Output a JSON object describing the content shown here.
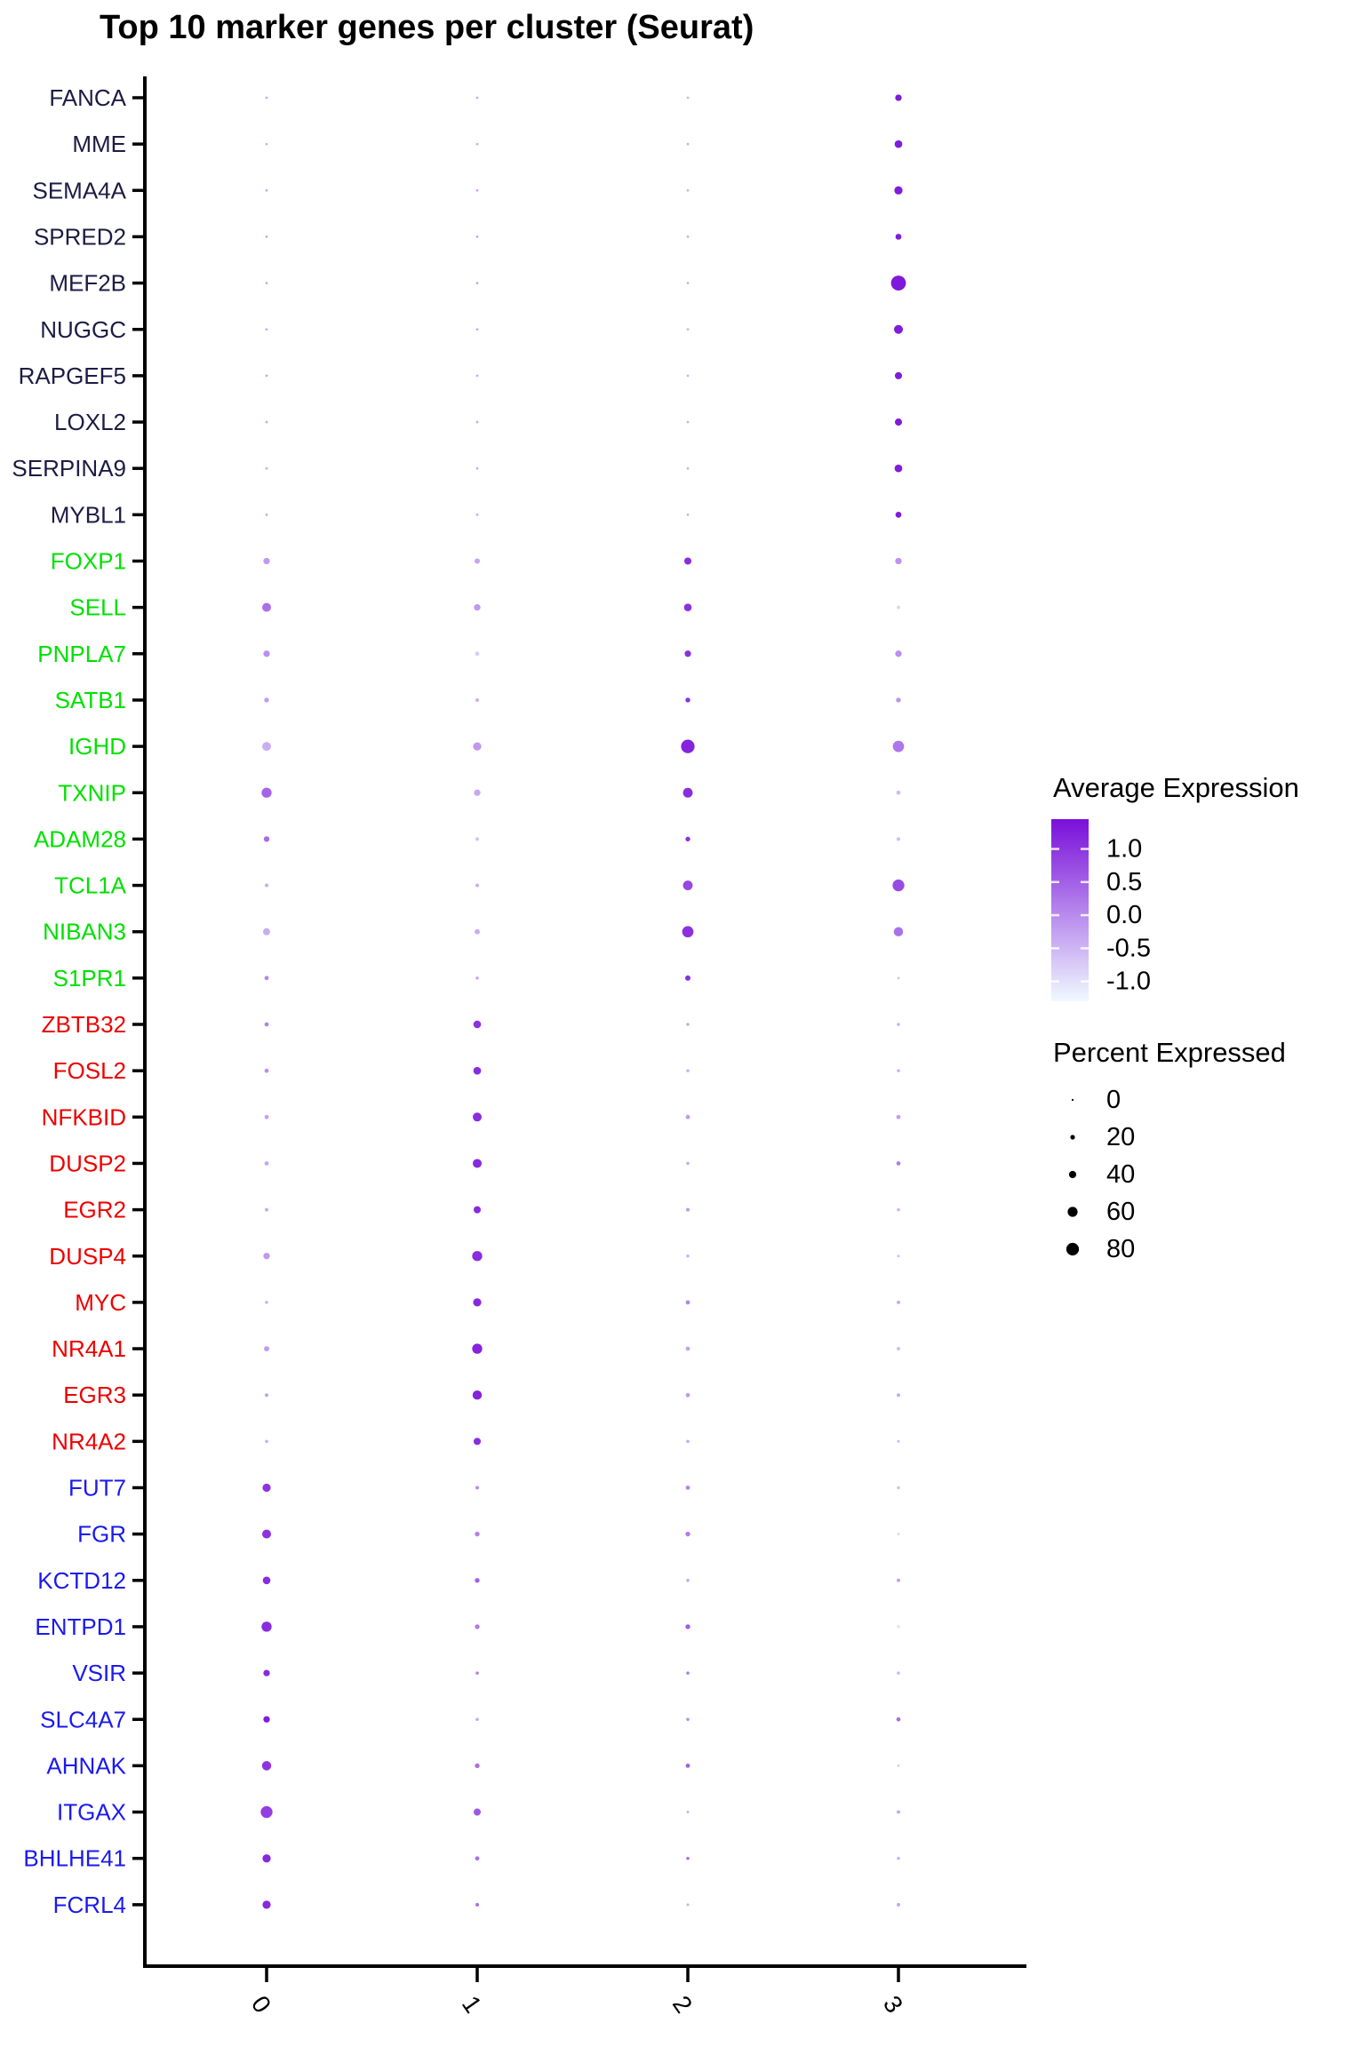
{
  "title": "Top 10 marker genes per cluster (Seurat)",
  "legend": {
    "average_expression": {
      "title": "Average Expression",
      "tick_labels": [
        "1.0",
        "0.5",
        "0.0",
        "-0.5",
        "-1.0"
      ],
      "tick_values": [
        1.0,
        0.5,
        0.0,
        -0.5,
        -1.0
      ]
    },
    "percent_expressed": {
      "title": "Percent Expressed",
      "entries": [
        0,
        20,
        40,
        60,
        80
      ]
    }
  },
  "chart_data": {
    "type": "scatter",
    "subtype": "dot_plot",
    "title": "Top 10 marker genes per cluster (Seurat)",
    "xlabel": "",
    "ylabel": "",
    "x_categories": [
      "0",
      "1",
      "2",
      "3"
    ],
    "color_scale": {
      "low": "#f0faff",
      "high": "#7a0fd9",
      "domain": [
        -1.3,
        1.45
      ]
    },
    "size_scale": {
      "d0": 2.2,
      "per_pct": 0.15
    },
    "legend_position": "right",
    "grid": false,
    "gene_group_colors": {
      "cluster3_markers": "#1c1c44",
      "cluster2_markers": "#00e000",
      "cluster1_markers": "#ee0000",
      "cluster0_markers": "#1a1aee"
    },
    "genes": [
      {
        "name": "FANCA",
        "color": "#1c1c44",
        "pct": [
          4,
          4,
          4,
          34
        ],
        "avg": [
          -0.35,
          -0.35,
          -0.45,
          1.3
        ]
      },
      {
        "name": "MME",
        "color": "#1c1c44",
        "pct": [
          3,
          3,
          4,
          43
        ],
        "avg": [
          -0.35,
          -0.35,
          -0.45,
          1.3
        ]
      },
      {
        "name": "SEMA4A",
        "color": "#1c1c44",
        "pct": [
          4,
          4,
          4,
          47
        ],
        "avg": [
          -0.35,
          -0.35,
          -0.45,
          1.3
        ]
      },
      {
        "name": "SPRED2",
        "color": "#1c1c44",
        "pct": [
          4,
          4,
          4,
          30
        ],
        "avg": [
          -0.35,
          -0.35,
          -0.45,
          1.3
        ]
      },
      {
        "name": "MEF2B",
        "color": "#1c1c44",
        "pct": [
          4,
          4,
          4,
          97
        ],
        "avg": [
          -0.35,
          -0.35,
          -0.45,
          1.35
        ]
      },
      {
        "name": "NUGGC",
        "color": "#1c1c44",
        "pct": [
          4,
          4,
          4,
          52
        ],
        "avg": [
          -0.35,
          -0.35,
          -0.45,
          1.3
        ]
      },
      {
        "name": "RAPGEF5",
        "color": "#1c1c44",
        "pct": [
          4,
          4,
          4,
          39
        ],
        "avg": [
          -0.35,
          -0.35,
          -0.45,
          1.3
        ]
      },
      {
        "name": "LOXL2",
        "color": "#1c1c44",
        "pct": [
          4,
          4,
          4,
          39
        ],
        "avg": [
          -0.35,
          -0.35,
          -0.45,
          1.3
        ]
      },
      {
        "name": "SERPINA9",
        "color": "#1c1c44",
        "pct": [
          4,
          4,
          4,
          43
        ],
        "avg": [
          -0.35,
          -0.35,
          -0.45,
          1.3
        ]
      },
      {
        "name": "MYBL1",
        "color": "#1c1c44",
        "pct": [
          4,
          4,
          4,
          30
        ],
        "avg": [
          -0.35,
          -0.35,
          -0.45,
          1.3
        ]
      },
      {
        "name": "FOXP1",
        "color": "#00e000",
        "pct": [
          34,
          25,
          39,
          34
        ],
        "avg": [
          -0.18,
          -0.3,
          1.1,
          -0.1
        ]
      },
      {
        "name": "SELL",
        "color": "#00e000",
        "pct": [
          52,
          34,
          43,
          12
        ],
        "avg": [
          0.33,
          -0.15,
          1.05,
          -0.85
        ]
      },
      {
        "name": "PNPLA7",
        "color": "#00e000",
        "pct": [
          34,
          17,
          34,
          34
        ],
        "avg": [
          -0.05,
          -0.75,
          1.05,
          -0.05
        ]
      },
      {
        "name": "SATB1",
        "color": "#00e000",
        "pct": [
          21,
          12,
          21,
          21
        ],
        "avg": [
          -0.2,
          -0.4,
          1.05,
          -0.1
        ]
      },
      {
        "name": "IGHD",
        "color": "#00e000",
        "pct": [
          52,
          47,
          87,
          70
        ],
        "avg": [
          -0.4,
          -0.15,
          1.2,
          0.25
        ]
      },
      {
        "name": "TXNIP",
        "color": "#00e000",
        "pct": [
          61,
          34,
          58,
          17
        ],
        "avg": [
          0.45,
          -0.35,
          1.1,
          -0.55
        ]
      },
      {
        "name": "ADAM28",
        "color": "#00e000",
        "pct": [
          28,
          12,
          21,
          12
        ],
        "avg": [
          0.35,
          -0.65,
          1.05,
          -0.55
        ]
      },
      {
        "name": "TCL1A",
        "color": "#00e000",
        "pct": [
          12,
          12,
          58,
          74
        ],
        "avg": [
          -0.35,
          -0.4,
          0.8,
          0.75
        ]
      },
      {
        "name": "NIBAN3",
        "color": "#00e000",
        "pct": [
          39,
          25,
          70,
          55
        ],
        "avg": [
          -0.4,
          -0.4,
          1.05,
          0.3
        ]
      },
      {
        "name": "S1PR1",
        "color": "#00e000",
        "pct": [
          17,
          9,
          25,
          5
        ],
        "avg": [
          0.1,
          -0.3,
          1.1,
          -0.7
        ]
      },
      {
        "name": "ZBTB32",
        "color": "#ee0000",
        "pct": [
          17,
          43,
          9,
          9
        ],
        "avg": [
          0.15,
          1.05,
          -0.35,
          -0.4
        ]
      },
      {
        "name": "FOSL2",
        "color": "#ee0000",
        "pct": [
          17,
          43,
          9,
          9
        ],
        "avg": [
          -0.05,
          1.1,
          -0.4,
          -0.4
        ]
      },
      {
        "name": "NFKBID",
        "color": "#ee0000",
        "pct": [
          17,
          52,
          17,
          17
        ],
        "avg": [
          -0.25,
          1.1,
          -0.15,
          -0.2
        ]
      },
      {
        "name": "DUSP2",
        "color": "#ee0000",
        "pct": [
          17,
          52,
          9,
          17
        ],
        "avg": [
          -0.3,
          1.15,
          -0.35,
          0.15
        ]
      },
      {
        "name": "EGR2",
        "color": "#ee0000",
        "pct": [
          12,
          39,
          12,
          9
        ],
        "avg": [
          -0.35,
          1.15,
          -0.15,
          -0.45
        ]
      },
      {
        "name": "DUSP4",
        "color": "#ee0000",
        "pct": [
          34,
          61,
          9,
          5
        ],
        "avg": [
          -0.15,
          1.1,
          -0.45,
          -0.55
        ]
      },
      {
        "name": "MYC",
        "color": "#ee0000",
        "pct": [
          9,
          47,
          17,
          12
        ],
        "avg": [
          -0.45,
          1.15,
          0.1,
          -0.35
        ]
      },
      {
        "name": "NR4A1",
        "color": "#ee0000",
        "pct": [
          25,
          61,
          17,
          12
        ],
        "avg": [
          -0.2,
          1.2,
          -0.25,
          -0.6
        ]
      },
      {
        "name": "EGR3",
        "color": "#ee0000",
        "pct": [
          12,
          55,
          17,
          12
        ],
        "avg": [
          -0.25,
          1.2,
          -0.15,
          -0.35
        ]
      },
      {
        "name": "NR4A2",
        "color": "#ee0000",
        "pct": [
          9,
          39,
          9,
          5
        ],
        "avg": [
          -0.35,
          1.1,
          -0.3,
          -0.5
        ]
      },
      {
        "name": "FUT7",
        "color": "#1a1aee",
        "pct": [
          47,
          12,
          17,
          9
        ],
        "avg": [
          1.0,
          0.0,
          0.1,
          -0.6
        ]
      },
      {
        "name": "FGR",
        "color": "#1a1aee",
        "pct": [
          52,
          21,
          21,
          5
        ],
        "avg": [
          1.05,
          0.15,
          0.2,
          -0.9
        ]
      },
      {
        "name": "KCTD12",
        "color": "#1a1aee",
        "pct": [
          43,
          21,
          9,
          12
        ],
        "avg": [
          1.1,
          0.5,
          -0.3,
          -0.25
        ]
      },
      {
        "name": "ENTPD1",
        "color": "#1a1aee",
        "pct": [
          61,
          21,
          21,
          9
        ],
        "avg": [
          1.1,
          0.2,
          0.55,
          -1.0
        ]
      },
      {
        "name": "VSIR",
        "color": "#1a1aee",
        "pct": [
          34,
          9,
          9,
          9
        ],
        "avg": [
          1.15,
          0.2,
          0.25,
          -0.5
        ]
      },
      {
        "name": "SLC4A7",
        "color": "#1a1aee",
        "pct": [
          34,
          9,
          9,
          17
        ],
        "avg": [
          1.3,
          -0.3,
          0.0,
          0.35
        ]
      },
      {
        "name": "AHNAK",
        "color": "#1a1aee",
        "pct": [
          55,
          21,
          17,
          5
        ],
        "avg": [
          1.0,
          0.35,
          0.5,
          -0.8
        ]
      },
      {
        "name": "ITGAX",
        "color": "#1a1aee",
        "pct": [
          74,
          39,
          5,
          12
        ],
        "avg": [
          0.9,
          0.6,
          -0.4,
          -0.35
        ]
      },
      {
        "name": "BHLHE41",
        "color": "#1a1aee",
        "pct": [
          47,
          17,
          9,
          9
        ],
        "avg": [
          1.15,
          0.35,
          0.3,
          -0.45
        ]
      },
      {
        "name": "FCRL4",
        "color": "#1a1aee",
        "pct": [
          47,
          12,
          5,
          12
        ],
        "avg": [
          1.15,
          0.35,
          -0.4,
          -0.3
        ]
      }
    ]
  }
}
